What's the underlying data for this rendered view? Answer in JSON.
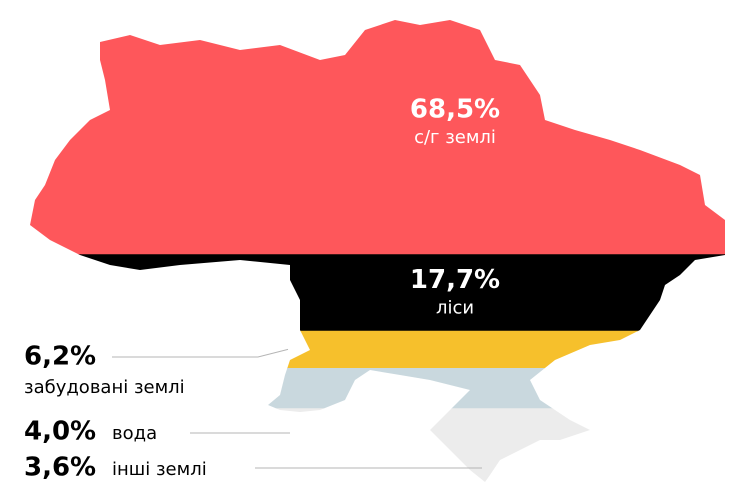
{
  "chart_data": {
    "type": "map-bands",
    "categories": [
      "с/г землі",
      "ліси",
      "забудовані землі",
      "вода",
      "інші землі"
    ],
    "values": [
      68.5,
      17.7,
      6.2,
      4.0,
      3.6
    ],
    "value_labels": [
      "68,5%",
      "17,7%",
      "6,2%",
      "4,0%",
      "3,6%"
    ],
    "colors": [
      "#fe575b",
      "#000000",
      "#f6c02c",
      "#c9d8de",
      "#ececec"
    ]
  }
}
